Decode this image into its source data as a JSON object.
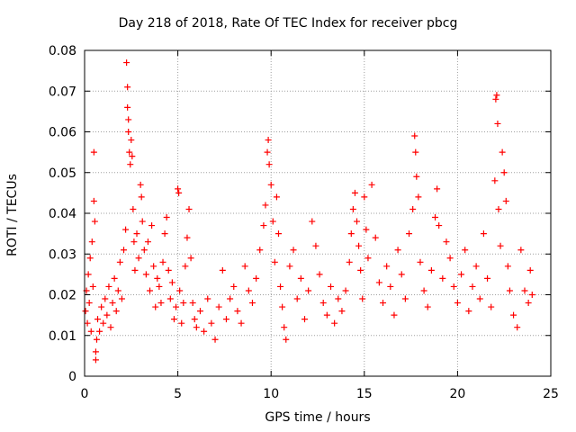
{
  "chart_data": {
    "type": "scatter",
    "title": "Day 218 of 2018, Rate Of TEC Index for receiver pbcg",
    "xlabel": "GPS time / hours",
    "ylabel": "ROTI / TECUs",
    "xlim": [
      0,
      25
    ],
    "ylim": [
      0,
      0.08
    ],
    "x_ticks": [
      0,
      5,
      10,
      15,
      20,
      25
    ],
    "x_tick_labels": [
      "0",
      "5",
      "10",
      "15",
      "20",
      "25"
    ],
    "y_ticks": [
      0,
      0.01,
      0.02,
      0.03,
      0.04,
      0.05,
      0.06,
      0.07,
      0.08
    ],
    "y_tick_labels": [
      "0",
      "0.01",
      "0.02",
      "0.03",
      "0.04",
      "0.05",
      "0.06",
      "0.07",
      "0.08"
    ],
    "grid": true,
    "marker": "+",
    "series": [
      {
        "name": "ROTI",
        "color": "#ff0000",
        "points": [
          [
            0.05,
            0.016
          ],
          [
            0.1,
            0.021
          ],
          [
            0.15,
            0.013
          ],
          [
            0.2,
            0.025
          ],
          [
            0.25,
            0.018
          ],
          [
            0.3,
            0.029
          ],
          [
            0.35,
            0.011
          ],
          [
            0.4,
            0.033
          ],
          [
            0.45,
            0.022
          ],
          [
            0.5,
            0.055
          ],
          [
            0.5,
            0.043
          ],
          [
            0.55,
            0.038
          ],
          [
            0.6,
            0.006
          ],
          [
            0.6,
            0.004
          ],
          [
            0.65,
            0.009
          ],
          [
            0.7,
            0.014
          ],
          [
            0.8,
            0.011
          ],
          [
            0.9,
            0.017
          ],
          [
            1.0,
            0.013
          ],
          [
            1.1,
            0.019
          ],
          [
            1.2,
            0.015
          ],
          [
            1.3,
            0.022
          ],
          [
            1.4,
            0.012
          ],
          [
            1.5,
            0.018
          ],
          [
            1.6,
            0.024
          ],
          [
            1.7,
            0.016
          ],
          [
            1.8,
            0.021
          ],
          [
            1.9,
            0.028
          ],
          [
            2.0,
            0.019
          ],
          [
            2.1,
            0.031
          ],
          [
            2.2,
            0.036
          ],
          [
            2.25,
            0.077
          ],
          [
            2.3,
            0.071
          ],
          [
            2.3,
            0.066
          ],
          [
            2.35,
            0.063
          ],
          [
            2.35,
            0.06
          ],
          [
            2.4,
            0.055
          ],
          [
            2.45,
            0.052
          ],
          [
            2.5,
            0.058
          ],
          [
            2.55,
            0.054
          ],
          [
            2.6,
            0.041
          ],
          [
            2.65,
            0.033
          ],
          [
            2.7,
            0.026
          ],
          [
            2.8,
            0.035
          ],
          [
            2.9,
            0.029
          ],
          [
            3.0,
            0.047
          ],
          [
            3.05,
            0.044
          ],
          [
            3.1,
            0.038
          ],
          [
            3.2,
            0.031
          ],
          [
            3.3,
            0.025
          ],
          [
            3.4,
            0.033
          ],
          [
            3.5,
            0.021
          ],
          [
            3.6,
            0.037
          ],
          [
            3.7,
            0.027
          ],
          [
            3.8,
            0.017
          ],
          [
            3.9,
            0.024
          ],
          [
            4.0,
            0.022
          ],
          [
            4.1,
            0.018
          ],
          [
            4.2,
            0.028
          ],
          [
            4.3,
            0.035
          ],
          [
            4.4,
            0.039
          ],
          [
            4.5,
            0.026
          ],
          [
            4.6,
            0.019
          ],
          [
            4.7,
            0.023
          ],
          [
            4.8,
            0.014
          ],
          [
            4.9,
            0.017
          ],
          [
            5.0,
            0.046
          ],
          [
            5.05,
            0.045
          ],
          [
            5.1,
            0.021
          ],
          [
            5.2,
            0.013
          ],
          [
            5.3,
            0.018
          ],
          [
            5.4,
            0.027
          ],
          [
            5.5,
            0.034
          ],
          [
            5.6,
            0.041
          ],
          [
            5.7,
            0.029
          ],
          [
            5.8,
            0.018
          ],
          [
            5.9,
            0.014
          ],
          [
            6.0,
            0.012
          ],
          [
            6.2,
            0.016
          ],
          [
            6.4,
            0.011
          ],
          [
            6.6,
            0.019
          ],
          [
            6.8,
            0.013
          ],
          [
            7.0,
            0.009
          ],
          [
            7.2,
            0.017
          ],
          [
            7.4,
            0.026
          ],
          [
            7.6,
            0.014
          ],
          [
            7.8,
            0.019
          ],
          [
            8.0,
            0.022
          ],
          [
            8.2,
            0.016
          ],
          [
            8.4,
            0.013
          ],
          [
            8.6,
            0.027
          ],
          [
            8.8,
            0.021
          ],
          [
            9.0,
            0.018
          ],
          [
            9.2,
            0.024
          ],
          [
            9.4,
            0.031
          ],
          [
            9.6,
            0.037
          ],
          [
            9.7,
            0.042
          ],
          [
            9.8,
            0.055
          ],
          [
            9.85,
            0.058
          ],
          [
            9.9,
            0.052
          ],
          [
            10.0,
            0.047
          ],
          [
            10.1,
            0.038
          ],
          [
            10.2,
            0.028
          ],
          [
            10.3,
            0.044
          ],
          [
            10.4,
            0.035
          ],
          [
            10.5,
            0.022
          ],
          [
            10.6,
            0.017
          ],
          [
            10.7,
            0.012
          ],
          [
            10.8,
            0.009
          ],
          [
            11.0,
            0.027
          ],
          [
            11.2,
            0.031
          ],
          [
            11.4,
            0.019
          ],
          [
            11.6,
            0.024
          ],
          [
            11.8,
            0.014
          ],
          [
            12.0,
            0.021
          ],
          [
            12.2,
            0.038
          ],
          [
            12.4,
            0.032
          ],
          [
            12.6,
            0.025
          ],
          [
            12.8,
            0.018
          ],
          [
            13.0,
            0.015
          ],
          [
            13.2,
            0.022
          ],
          [
            13.4,
            0.013
          ],
          [
            13.6,
            0.019
          ],
          [
            13.8,
            0.016
          ],
          [
            14.0,
            0.021
          ],
          [
            14.2,
            0.028
          ],
          [
            14.3,
            0.035
          ],
          [
            14.4,
            0.041
          ],
          [
            14.5,
            0.045
          ],
          [
            14.6,
            0.038
          ],
          [
            14.7,
            0.032
          ],
          [
            14.8,
            0.026
          ],
          [
            14.9,
            0.019
          ],
          [
            15.0,
            0.044
          ],
          [
            15.1,
            0.036
          ],
          [
            15.2,
            0.029
          ],
          [
            15.4,
            0.047
          ],
          [
            15.6,
            0.034
          ],
          [
            15.8,
            0.023
          ],
          [
            16.0,
            0.018
          ],
          [
            16.2,
            0.027
          ],
          [
            16.4,
            0.022
          ],
          [
            16.6,
            0.015
          ],
          [
            16.8,
            0.031
          ],
          [
            17.0,
            0.025
          ],
          [
            17.2,
            0.019
          ],
          [
            17.4,
            0.035
          ],
          [
            17.6,
            0.041
          ],
          [
            17.7,
            0.059
          ],
          [
            17.75,
            0.055
          ],
          [
            17.8,
            0.049
          ],
          [
            17.9,
            0.044
          ],
          [
            18.0,
            0.028
          ],
          [
            18.2,
            0.021
          ],
          [
            18.4,
            0.017
          ],
          [
            18.6,
            0.026
          ],
          [
            18.8,
            0.039
          ],
          [
            18.9,
            0.046
          ],
          [
            19.0,
            0.037
          ],
          [
            19.2,
            0.024
          ],
          [
            19.4,
            0.033
          ],
          [
            19.6,
            0.029
          ],
          [
            19.8,
            0.022
          ],
          [
            20.0,
            0.018
          ],
          [
            20.2,
            0.025
          ],
          [
            20.4,
            0.031
          ],
          [
            20.6,
            0.016
          ],
          [
            20.8,
            0.022
          ],
          [
            21.0,
            0.027
          ],
          [
            21.2,
            0.019
          ],
          [
            21.4,
            0.035
          ],
          [
            21.6,
            0.024
          ],
          [
            21.8,
            0.017
          ],
          [
            22.0,
            0.048
          ],
          [
            22.05,
            0.068
          ],
          [
            22.1,
            0.069
          ],
          [
            22.15,
            0.062
          ],
          [
            22.2,
            0.041
          ],
          [
            22.3,
            0.032
          ],
          [
            22.4,
            0.055
          ],
          [
            22.5,
            0.05
          ],
          [
            22.6,
            0.043
          ],
          [
            22.7,
            0.027
          ],
          [
            22.8,
            0.021
          ],
          [
            23.0,
            0.015
          ],
          [
            23.2,
            0.012
          ],
          [
            23.4,
            0.031
          ],
          [
            23.6,
            0.021
          ],
          [
            23.8,
            0.018
          ],
          [
            23.9,
            0.026
          ],
          [
            24.0,
            0.02
          ]
        ]
      }
    ]
  }
}
